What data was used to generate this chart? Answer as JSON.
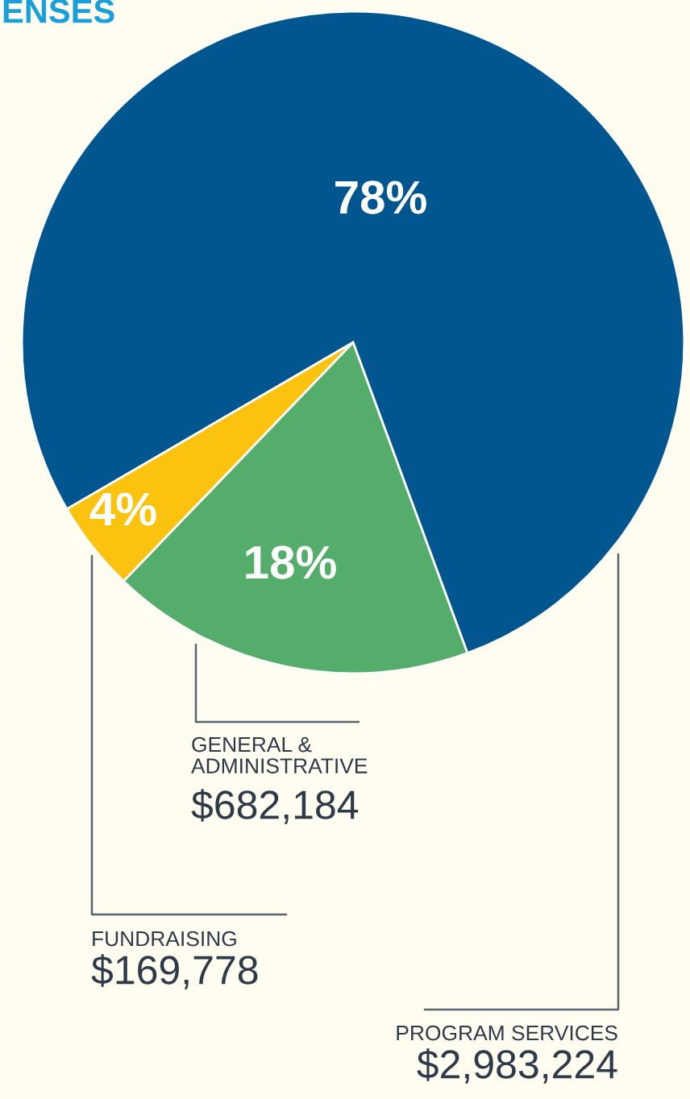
{
  "chart_data": {
    "type": "pie",
    "title": "ENSES",
    "categories": [
      "PROGRAM SERVICES",
      "FUNDRAISING",
      "GENERAL & ADMINISTRATIVE"
    ],
    "values": [
      2983224,
      169778,
      682184
    ],
    "colors": [
      "#02568f",
      "#fbc210",
      "#55ad6b"
    ],
    "value_labels": [
      "$2,983,224",
      "$169,778",
      "$682,184"
    ],
    "annotations": [
      "78%",
      "4%",
      "18%"
    ]
  }
}
